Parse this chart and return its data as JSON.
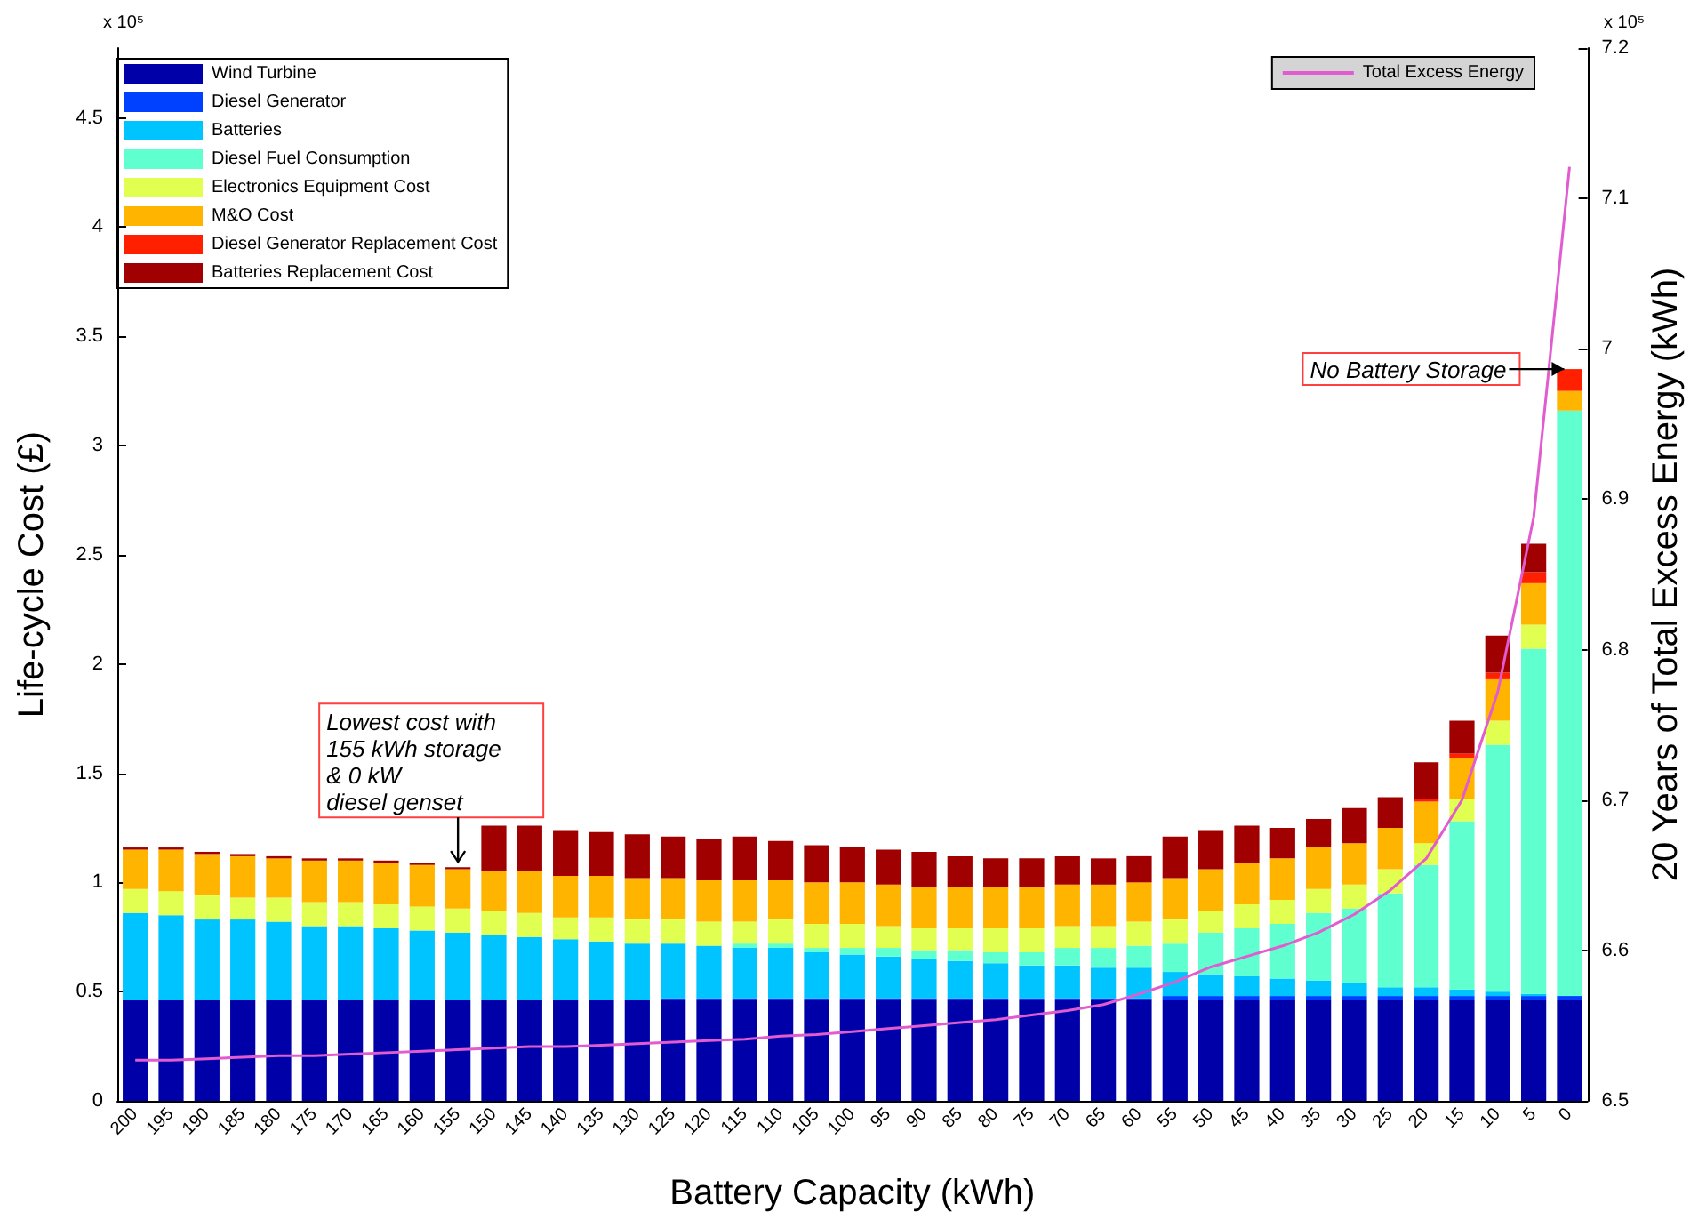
{
  "chart_data": {
    "type": "bar",
    "stacked": true,
    "xlabel": "Battery Capacity (kWh)",
    "ylabel": "Life-cycle Cost (£)",
    "y2label": "20 Years of Total Excess Energy (kWh)",
    "categories": [
      "200",
      "195",
      "190",
      "185",
      "180",
      "175",
      "170",
      "165",
      "160",
      "155",
      "150",
      "145",
      "140",
      "135",
      "130",
      "125",
      "120",
      "115",
      "110",
      "105",
      "100",
      "95",
      "90",
      "85",
      "80",
      "75",
      "70",
      "65",
      "60",
      "55",
      "50",
      "45",
      "40",
      "35",
      "30",
      "25",
      "20",
      "15",
      "10",
      "5",
      "0"
    ],
    "series": [
      {
        "name": "Wind Turbine",
        "color": "#0000a8",
        "values": [
          0.46,
          0.46,
          0.46,
          0.46,
          0.46,
          0.46,
          0.46,
          0.46,
          0.46,
          0.46,
          0.46,
          0.46,
          0.46,
          0.46,
          0.46,
          0.46,
          0.46,
          0.46,
          0.46,
          0.46,
          0.46,
          0.46,
          0.46,
          0.46,
          0.46,
          0.46,
          0.46,
          0.46,
          0.46,
          0.46,
          0.46,
          0.46,
          0.46,
          0.46,
          0.46,
          0.46,
          0.46,
          0.46,
          0.46,
          0.46,
          0.46
        ]
      },
      {
        "name": "Diesel Generator",
        "color": "#0040ff",
        "values": [
          0,
          0,
          0,
          0,
          0,
          0,
          0,
          0,
          0,
          0,
          0,
          0,
          0,
          0,
          0,
          0.01,
          0.01,
          0.01,
          0.01,
          0.01,
          0.01,
          0.01,
          0.01,
          0.01,
          0.01,
          0.01,
          0.01,
          0.01,
          0.01,
          0.02,
          0.02,
          0.02,
          0.02,
          0.02,
          0.02,
          0.02,
          0.02,
          0.02,
          0.02,
          0.02,
          0.02
        ]
      },
      {
        "name": "Batteries",
        "color": "#00c4ff",
        "values": [
          0.4,
          0.39,
          0.37,
          0.37,
          0.36,
          0.34,
          0.34,
          0.33,
          0.32,
          0.31,
          0.3,
          0.29,
          0.28,
          0.27,
          0.26,
          0.25,
          0.24,
          0.23,
          0.23,
          0.21,
          0.2,
          0.19,
          0.18,
          0.17,
          0.16,
          0.15,
          0.15,
          0.14,
          0.14,
          0.11,
          0.1,
          0.09,
          0.08,
          0.07,
          0.06,
          0.04,
          0.04,
          0.03,
          0.02,
          0.01,
          0
        ]
      },
      {
        "name": "Diesel Fuel Consumption",
        "color": "#60ffd0",
        "values": [
          0,
          0,
          0,
          0,
          0,
          0,
          0,
          0,
          0,
          0,
          0,
          0,
          0,
          0,
          0,
          0,
          0,
          0.02,
          0.02,
          0.02,
          0.03,
          0.04,
          0.04,
          0.05,
          0.05,
          0.06,
          0.08,
          0.09,
          0.1,
          0.13,
          0.19,
          0.22,
          0.25,
          0.31,
          0.34,
          0.43,
          0.56,
          0.77,
          1.13,
          1.58,
          2.68
        ]
      },
      {
        "name": "Electronics Equipment Cost",
        "color": "#e0ff50",
        "values": [
          0.11,
          0.11,
          0.11,
          0.1,
          0.11,
          0.11,
          0.11,
          0.11,
          0.11,
          0.11,
          0.11,
          0.11,
          0.1,
          0.11,
          0.11,
          0.11,
          0.11,
          0.1,
          0.11,
          0.11,
          0.11,
          0.1,
          0.1,
          0.1,
          0.11,
          0.11,
          0.1,
          0.1,
          0.11,
          0.11,
          0.1,
          0.11,
          0.11,
          0.11,
          0.11,
          0.11,
          0.1,
          0.1,
          0.11,
          0.11,
          0
        ]
      },
      {
        "name": "M&O Cost",
        "color": "#ffb400",
        "values": [
          0.18,
          0.19,
          0.19,
          0.19,
          0.18,
          0.19,
          0.19,
          0.19,
          0.19,
          0.18,
          0.18,
          0.19,
          0.19,
          0.19,
          0.19,
          0.19,
          0.19,
          0.19,
          0.18,
          0.19,
          0.19,
          0.19,
          0.19,
          0.19,
          0.19,
          0.19,
          0.19,
          0.19,
          0.18,
          0.19,
          0.19,
          0.19,
          0.19,
          0.19,
          0.19,
          0.19,
          0.19,
          0.19,
          0.19,
          0.19,
          0.09
        ]
      },
      {
        "name": "Diesel Generator Replacement Cost",
        "color": "#ff2000",
        "values": [
          0,
          0,
          0,
          0,
          0,
          0,
          0,
          0,
          0,
          0,
          0,
          0,
          0,
          0,
          0,
          0,
          0,
          0,
          0,
          0,
          0,
          0,
          0,
          0,
          0,
          0,
          0,
          0,
          0,
          0,
          0,
          0,
          0,
          0,
          0,
          0,
          0.01,
          0.02,
          0.03,
          0.05,
          0.1
        ]
      },
      {
        "name": "Batteries Replacement Cost",
        "color": "#a00000",
        "values": [
          0.01,
          0.01,
          0.01,
          0.01,
          0.01,
          0.01,
          0.01,
          0.01,
          0.01,
          0.01,
          0.21,
          0.21,
          0.21,
          0.2,
          0.2,
          0.19,
          0.19,
          0.2,
          0.18,
          0.17,
          0.16,
          0.16,
          0.16,
          0.14,
          0.13,
          0.13,
          0.13,
          0.12,
          0.12,
          0.19,
          0.18,
          0.17,
          0.14,
          0.13,
          0.16,
          0.14,
          0.17,
          0.15,
          0.17,
          0.13,
          0
        ]
      },
      {
        "name": "Total Excess Energy",
        "type": "line",
        "axis": "y2",
        "color": "#e05ccf",
        "values": [
          6.527,
          6.527,
          6.528,
          6.529,
          6.53,
          6.53,
          6.531,
          6.532,
          6.533,
          6.534,
          6.535,
          6.536,
          6.536,
          6.537,
          6.538,
          6.539,
          6.54,
          6.541,
          6.543,
          6.544,
          6.546,
          6.548,
          6.55,
          6.552,
          6.554,
          6.557,
          6.56,
          6.564,
          6.571,
          6.579,
          6.589,
          6.596,
          6.603,
          6.612,
          6.624,
          6.64,
          6.661,
          6.7,
          6.772,
          6.888,
          7.121
        ]
      }
    ],
    "ylim": [
      0,
      4.82
    ],
    "yticks": [
      0,
      0.5,
      1,
      1.5,
      2,
      2.5,
      3,
      3.5,
      4,
      4.5
    ],
    "y2lim": [
      6.5,
      7.2
    ],
    "y2ticks": [
      6.5,
      6.6,
      6.7,
      6.8,
      6.9,
      7,
      7.1,
      7.2
    ],
    "legend": "top",
    "marker": "none",
    "line_style": "solid",
    "annotations": [
      "x 10⁵",
      "x 10⁵",
      {
        "text": "Lowest cost with\n155 kWh storage\n& 0 kW\ndiesel genset",
        "x": "155",
        "y": 1.07
      },
      {
        "text": "No Battery Storage",
        "x": "0",
        "y": 3.35
      }
    ]
  }
}
